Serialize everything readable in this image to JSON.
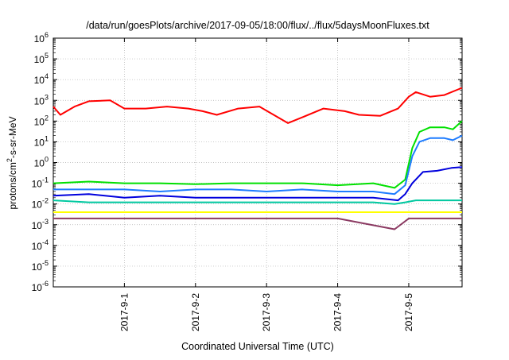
{
  "chart_data": {
    "type": "line",
    "title": "/data/run/goesPlots/archive/2017-09-05/18:00/flux/../flux/5daysMoonFluxes.txt",
    "xlabel": "Coordinated Universal Time (UTC)",
    "ylabel_main": "protons/cm",
    "ylabel_sup": "2",
    "ylabel_tail": "-s-sr-MeV",
    "yscale": "log",
    "ylim_exp": [
      -6,
      6
    ],
    "y_ticks": [
      {
        "exp": "-6"
      },
      {
        "exp": "-5"
      },
      {
        "exp": "-4"
      },
      {
        "exp": "-3"
      },
      {
        "exp": "-2"
      },
      {
        "exp": "-1"
      },
      {
        "exp": "0"
      },
      {
        "exp": "1"
      },
      {
        "exp": "2"
      },
      {
        "exp": "3"
      },
      {
        "exp": "4"
      },
      {
        "exp": "5"
      },
      {
        "exp": "6"
      }
    ],
    "y_tick_base": "10",
    "xlim_days": [
      0,
      5.75
    ],
    "x_ticks": [
      {
        "day": 1,
        "label": "2017-9-1"
      },
      {
        "day": 2,
        "label": "2017-9-2"
      },
      {
        "day": 3,
        "label": "2017-9-3"
      },
      {
        "day": 4,
        "label": "2017-9-4"
      },
      {
        "day": 5,
        "label": "2017-9-5"
      }
    ],
    "grid": true,
    "series": [
      {
        "color": "#ff0000",
        "points": [
          [
            0,
            500
          ],
          [
            0.1,
            200
          ],
          [
            0.3,
            500
          ],
          [
            0.5,
            900
          ],
          [
            0.8,
            1000
          ],
          [
            1.0,
            400
          ],
          [
            1.3,
            400
          ],
          [
            1.6,
            500
          ],
          [
            1.9,
            400
          ],
          [
            2.1,
            300
          ],
          [
            2.3,
            200
          ],
          [
            2.6,
            400
          ],
          [
            2.9,
            500
          ],
          [
            3.1,
            200
          ],
          [
            3.3,
            80
          ],
          [
            3.5,
            150
          ],
          [
            3.8,
            400
          ],
          [
            4.1,
            300
          ],
          [
            4.3,
            200
          ],
          [
            4.6,
            180
          ],
          [
            4.85,
            400
          ],
          [
            5.0,
            1500
          ],
          [
            5.1,
            2500
          ],
          [
            5.3,
            1500
          ],
          [
            5.5,
            1800
          ],
          [
            5.75,
            4000
          ]
        ]
      },
      {
        "color": "#00e000",
        "points": [
          [
            0,
            0.1
          ],
          [
            0.5,
            0.12
          ],
          [
            1.0,
            0.1
          ],
          [
            1.5,
            0.1
          ],
          [
            2.0,
            0.09
          ],
          [
            2.5,
            0.1
          ],
          [
            3.0,
            0.1
          ],
          [
            3.5,
            0.1
          ],
          [
            4.0,
            0.08
          ],
          [
            4.5,
            0.1
          ],
          [
            4.8,
            0.06
          ],
          [
            4.95,
            0.15
          ],
          [
            5.05,
            5
          ],
          [
            5.15,
            30
          ],
          [
            5.3,
            50
          ],
          [
            5.5,
            50
          ],
          [
            5.62,
            40
          ],
          [
            5.75,
            100
          ]
        ]
      },
      {
        "color": "#1e7cff",
        "points": [
          [
            0,
            0.05
          ],
          [
            0.5,
            0.05
          ],
          [
            1.0,
            0.05
          ],
          [
            1.5,
            0.04
          ],
          [
            2.0,
            0.05
          ],
          [
            2.5,
            0.05
          ],
          [
            3.0,
            0.04
          ],
          [
            3.5,
            0.05
          ],
          [
            4.0,
            0.04
          ],
          [
            4.5,
            0.04
          ],
          [
            4.8,
            0.03
          ],
          [
            4.95,
            0.08
          ],
          [
            5.05,
            2
          ],
          [
            5.15,
            10
          ],
          [
            5.3,
            15
          ],
          [
            5.5,
            15
          ],
          [
            5.62,
            12
          ],
          [
            5.75,
            20
          ]
        ]
      },
      {
        "color": "#0000dd",
        "points": [
          [
            0,
            0.025
          ],
          [
            0.5,
            0.03
          ],
          [
            1.0,
            0.02
          ],
          [
            1.5,
            0.025
          ],
          [
            2.0,
            0.02
          ],
          [
            2.5,
            0.02
          ],
          [
            3.0,
            0.02
          ],
          [
            3.5,
            0.02
          ],
          [
            4.0,
            0.02
          ],
          [
            4.5,
            0.02
          ],
          [
            4.85,
            0.015
          ],
          [
            4.95,
            0.03
          ],
          [
            5.05,
            0.1
          ],
          [
            5.2,
            0.35
          ],
          [
            5.4,
            0.4
          ],
          [
            5.6,
            0.55
          ],
          [
            5.75,
            0.6
          ]
        ]
      },
      {
        "color": "#00c8a0",
        "points": [
          [
            0,
            0.015
          ],
          [
            0.5,
            0.012
          ],
          [
            1.0,
            0.012
          ],
          [
            1.5,
            0.012
          ],
          [
            2.0,
            0.012
          ],
          [
            2.5,
            0.012
          ],
          [
            3.0,
            0.012
          ],
          [
            3.5,
            0.012
          ],
          [
            4.0,
            0.012
          ],
          [
            4.5,
            0.012
          ],
          [
            4.8,
            0.01
          ],
          [
            4.95,
            0.012
          ],
          [
            5.1,
            0.015
          ],
          [
            5.4,
            0.015
          ],
          [
            5.75,
            0.015
          ]
        ]
      },
      {
        "color": "#ffff00",
        "points": [
          [
            0,
            0.004
          ],
          [
            1.0,
            0.004
          ],
          [
            2.0,
            0.004
          ],
          [
            3.0,
            0.004
          ],
          [
            4.0,
            0.004
          ],
          [
            5.0,
            0.004
          ],
          [
            5.75,
            0.004
          ]
        ]
      },
      {
        "color": "#8b3a62",
        "points": [
          [
            0,
            0.002
          ],
          [
            1.0,
            0.002
          ],
          [
            2.0,
            0.002
          ],
          [
            3.0,
            0.002
          ],
          [
            4.0,
            0.002
          ],
          [
            4.8,
            0.0006
          ],
          [
            5.0,
            0.002
          ],
          [
            5.75,
            0.002
          ]
        ]
      }
    ]
  }
}
